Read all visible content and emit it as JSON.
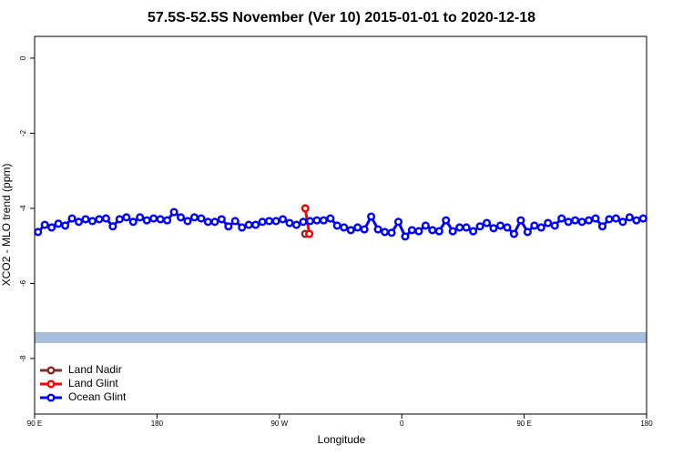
{
  "chart_data": {
    "type": "line",
    "title": "57.5S-52.5S November (Ver 10)   2015-01-01 to 2020-12-18",
    "x_label": "Longitude",
    "y_label": "XCO2 - MLO trend (ppm)",
    "xlim": [
      90,
      540
    ],
    "ylim": [
      -9.48,
      0.58
    ],
    "xticks": [
      {
        "value": 90,
        "label": "90 E"
      },
      180,
      {
        "value": 270,
        "label": "90 W"
      },
      {
        "value": 360,
        "label": "0"
      },
      {
        "value": 450,
        "label": "90 E"
      },
      {
        "value": 540,
        "label": "180"
      }
    ],
    "yticks": [
      0,
      -2,
      -4,
      -6,
      -8
    ],
    "legend": "bottom-left",
    "series": [
      {
        "name": "Land Nadir",
        "color": "#8b2a2a",
        "x": [
          289
        ],
        "values": [
          -4.68
        ]
      },
      {
        "name": "Land Glint",
        "color": "#ff0000",
        "x": [
          289,
          292
        ],
        "values": [
          -4.0,
          -4.68
        ]
      },
      {
        "name": "Ocean Glint",
        "color": "#0000ff",
        "x": [
          92.5,
          97.5,
          102.5,
          107.5,
          112.5,
          117.5,
          122.5,
          127.5,
          132.5,
          137.5,
          142.5,
          147.5,
          152.5,
          157.5,
          162.5,
          167.5,
          172.5,
          177.5,
          182.5,
          187.5,
          192.5,
          197.5,
          202.5,
          207.5,
          212.5,
          217.5,
          222.5,
          227.5,
          232.5,
          237.5,
          242.5,
          247.5,
          252.5,
          257.5,
          262.5,
          267.5,
          272.5,
          277.5,
          282.5,
          287.5,
          292.5,
          297.5,
          302.5,
          307.5,
          312.5,
          317.5,
          322.5,
          327.5,
          332.5,
          337.5,
          342.5,
          347.5,
          352.5,
          357.5,
          362.5,
          367.5,
          372.5,
          377.5,
          382.5,
          387.5,
          392.5,
          397.5,
          402.5,
          407.5,
          412.5,
          417.5,
          422.5,
          427.5,
          432.5,
          437.5,
          442.5,
          447.5,
          452.5,
          457.5,
          462.5,
          467.5,
          472.5,
          477.5,
          482.5,
          487.5,
          492.5,
          497.5,
          502.5,
          507.5,
          512.5,
          517.5,
          522.5,
          527.5,
          532.5,
          537.5
        ],
        "values": [
          -4.63,
          -4.44,
          -4.51,
          -4.41,
          -4.46,
          -4.27,
          -4.36,
          -4.29,
          -4.34,
          -4.29,
          -4.27,
          -4.48,
          -4.29,
          -4.24,
          -4.36,
          -4.24,
          -4.32,
          -4.27,
          -4.29,
          -4.32,
          -4.1,
          -4.24,
          -4.34,
          -4.24,
          -4.27,
          -4.36,
          -4.36,
          -4.29,
          -4.48,
          -4.34,
          -4.51,
          -4.44,
          -4.44,
          -4.36,
          -4.34,
          -4.34,
          -4.29,
          -4.39,
          -4.44,
          -4.36,
          -4.34,
          -4.32,
          -4.32,
          -4.27,
          -4.46,
          -4.51,
          -4.58,
          -4.51,
          -4.56,
          -4.22,
          -4.56,
          -4.63,
          -4.65,
          -4.36,
          -4.75,
          -4.58,
          -4.61,
          -4.46,
          -4.58,
          -4.61,
          -4.32,
          -4.61,
          -4.51,
          -4.51,
          -4.61,
          -4.48,
          -4.39,
          -4.53,
          -4.46,
          -4.51,
          -4.68,
          -4.32,
          -4.63,
          -4.46,
          -4.51,
          -4.39,
          -4.46,
          -4.27,
          -4.36,
          -4.32,
          -4.36,
          -4.32,
          -4.27,
          -4.48,
          -4.29,
          -4.27,
          -4.36,
          -4.24,
          -4.32,
          -4.27
        ]
      }
    ]
  }
}
